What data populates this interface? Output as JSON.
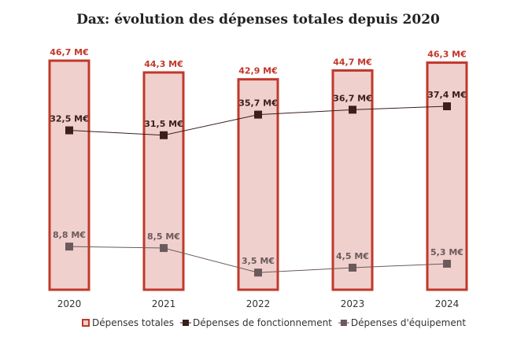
{
  "chart_data": {
    "type": "bar",
    "title": "Dax: évolution des dépenses totales depuis 2020",
    "categories": [
      "2020",
      "2021",
      "2022",
      "2023",
      "2024"
    ],
    "ylim": [
      0,
      50
    ],
    "grid": false,
    "legend_position": "bottom",
    "unit_suffix": " M€",
    "series": [
      {
        "name": "Dépenses totales",
        "kind": "bar",
        "values": [
          46.7,
          44.3,
          42.9,
          44.7,
          46.3
        ],
        "labels": [
          "46,7 M€",
          "44,3 M€",
          "42,9 M€",
          "44,7 M€",
          "46,3 M€"
        ],
        "color": "#c0392b",
        "fill": "#f0d0cd"
      },
      {
        "name": "Dépenses de fonctionnement",
        "kind": "line",
        "values": [
          32.5,
          31.5,
          35.7,
          36.7,
          37.4
        ],
        "labels": [
          "32,5 M€",
          "31,5 M€",
          "35,7 M€",
          "36,7 M€",
          "37,4 M€"
        ],
        "color": "#3a1f1a"
      },
      {
        "name": "Dépenses d'équipement",
        "kind": "line",
        "values": [
          8.8,
          8.5,
          3.5,
          4.5,
          5.3
        ],
        "labels": [
          "8,8 M€",
          "8,5 M€",
          "3,5 M€",
          "4,5 M€",
          "5,3 M€"
        ],
        "color": "#6b5a5c"
      }
    ]
  }
}
